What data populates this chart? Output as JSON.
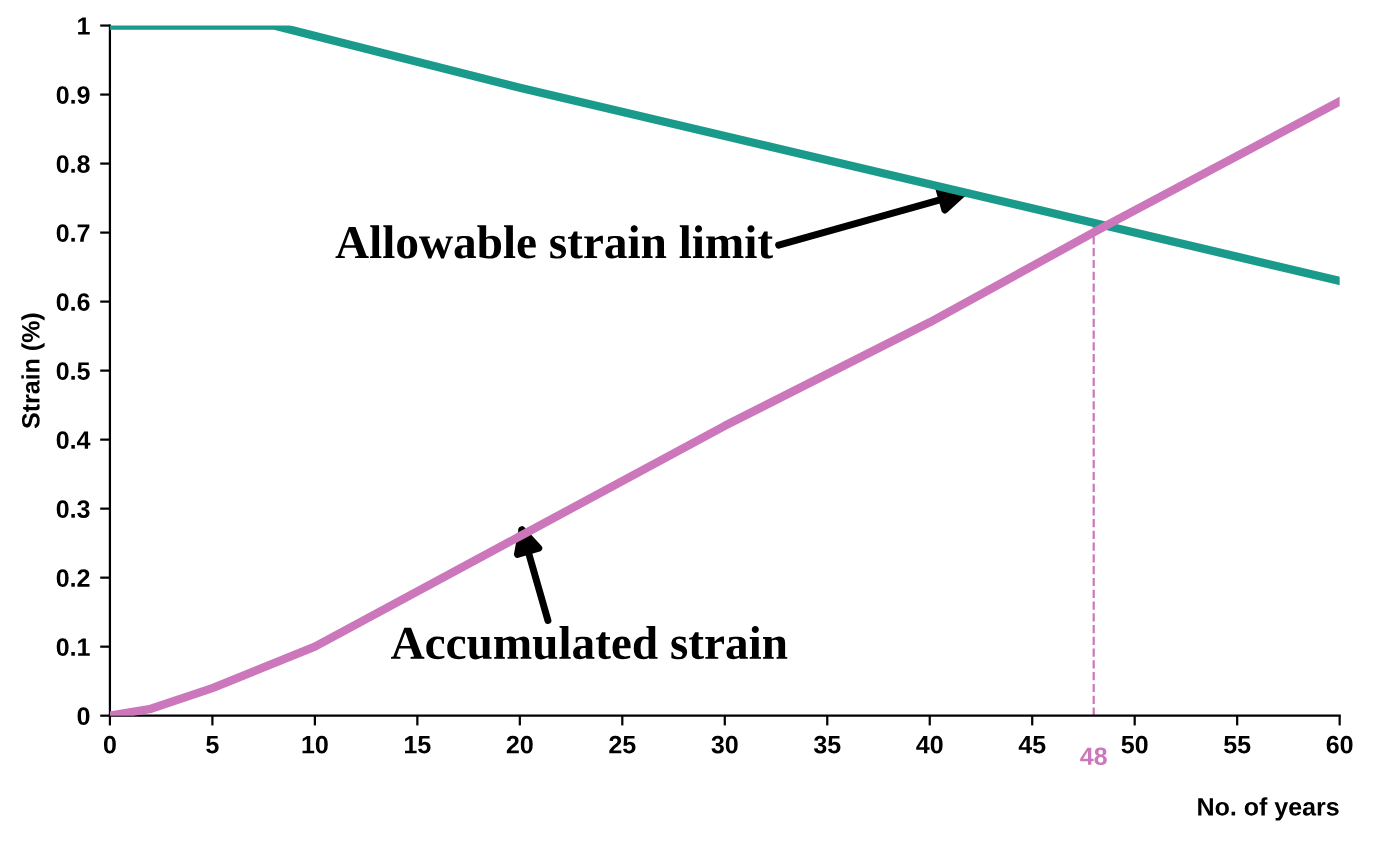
{
  "chart_data": {
    "type": "line",
    "xlabel": "No. of years",
    "ylabel": "Strain (%)",
    "series": [
      {
        "color": "#1a9a8a",
        "x": [
          0,
          8,
          20,
          30,
          40,
          48.6,
          60
        ],
        "values": [
          1,
          1,
          0.91,
          0.84,
          0.77,
          0.71,
          0.63
        ]
      },
      {
        "color": "#cc77bb",
        "x": [
          0,
          2,
          5,
          10,
          20,
          30,
          40,
          48.6,
          60
        ],
        "values": [
          0,
          0.01,
          0.04,
          0.1,
          0.26,
          0.42,
          0.57,
          0.71,
          0.89
        ]
      }
    ],
    "xlim": [
      0,
      60
    ],
    "xticks": [
      0,
      5,
      10,
      15,
      20,
      25,
      30,
      35,
      40,
      45,
      50,
      55,
      60
    ],
    "ylim": [
      0,
      1
    ],
    "yticks": [
      0,
      0.1,
      0.2,
      0.3,
      0.4,
      0.5,
      0.6,
      0.7,
      0.8,
      0.9,
      1
    ],
    "ref_lines": [
      {
        "axis": "x",
        "value": 48,
        "label": "48",
        "color": "#cc77bb",
        "line_style": "dashed"
      }
    ],
    "annotations": [
      {
        "text": "Allowable strain limit",
        "x": 42,
        "y": 0.76
      },
      {
        "text": "Accumulated strain",
        "x": 20,
        "y": 0.28
      }
    ],
    "grid": false,
    "marker": "none",
    "line_style": "solid"
  }
}
